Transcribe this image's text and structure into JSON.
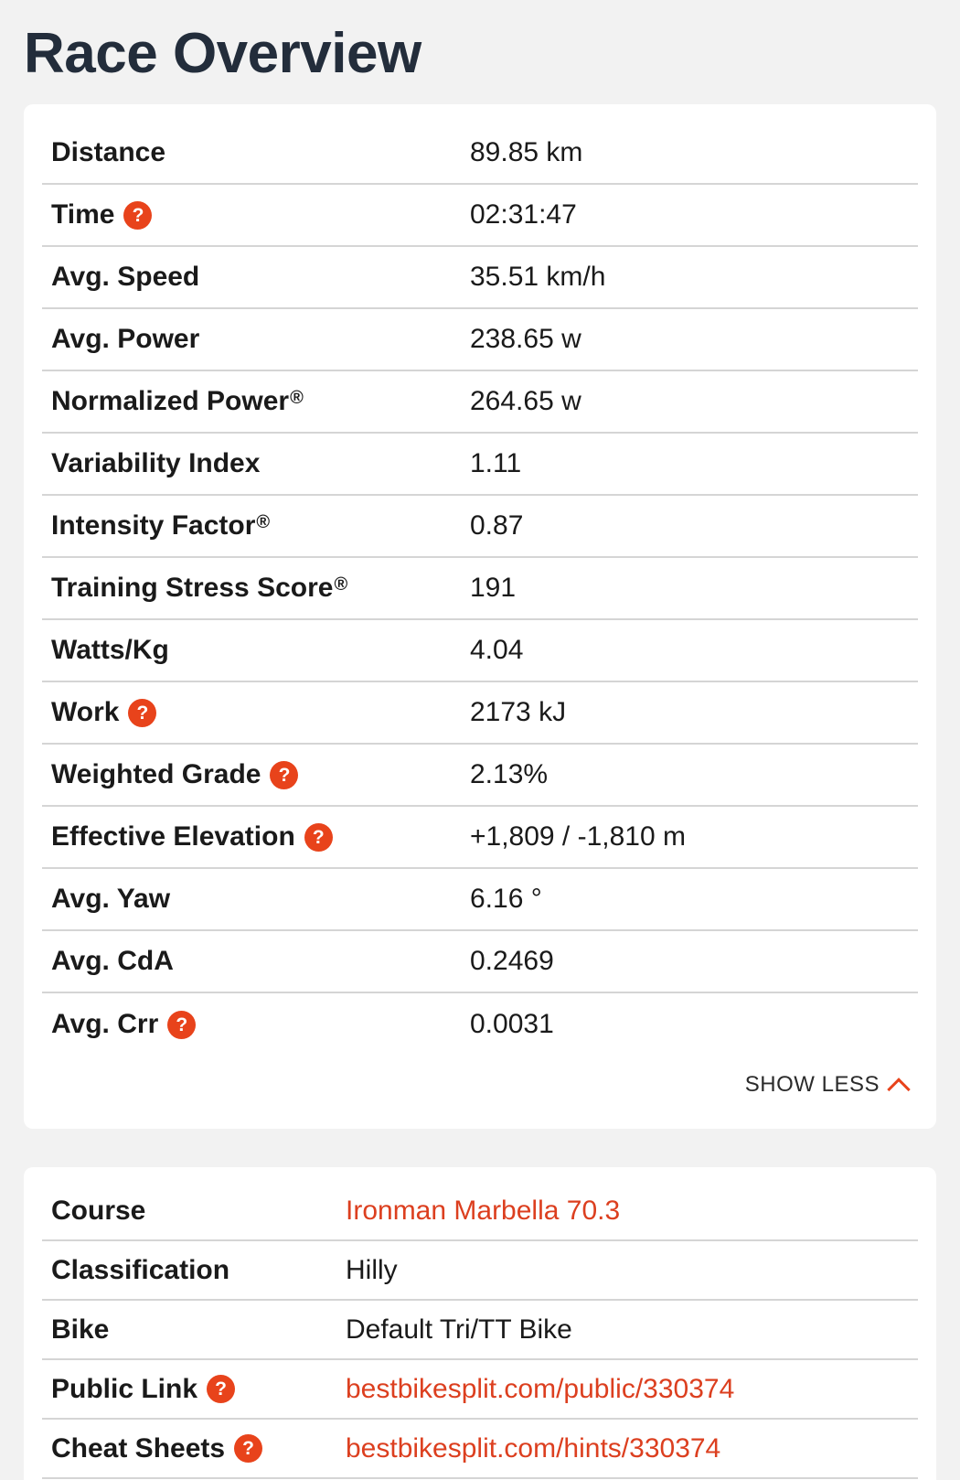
{
  "page": {
    "title": "Race Overview"
  },
  "stats": [
    {
      "label": "Distance",
      "value": "89.85 km",
      "help": false,
      "reg": false
    },
    {
      "label": "Time",
      "value": "02:31:47",
      "help": true,
      "reg": false
    },
    {
      "label": "Avg. Speed",
      "value": "35.51 km/h",
      "help": false,
      "reg": false
    },
    {
      "label": "Avg. Power",
      "value": "238.65 w",
      "help": false,
      "reg": false
    },
    {
      "label": "Normalized Power",
      "value": "264.65 w",
      "help": false,
      "reg": true
    },
    {
      "label": "Variability Index",
      "value": "1.11",
      "help": false,
      "reg": false
    },
    {
      "label": "Intensity Factor",
      "value": "0.87",
      "help": false,
      "reg": true
    },
    {
      "label": "Training Stress Score",
      "value": "191",
      "help": false,
      "reg": true
    },
    {
      "label": "Watts/Kg",
      "value": "4.04",
      "help": false,
      "reg": false
    },
    {
      "label": "Work",
      "value": "2173 kJ",
      "help": true,
      "reg": false
    },
    {
      "label": "Weighted Grade",
      "value": "2.13%",
      "help": true,
      "reg": false
    },
    {
      "label": "Effective Elevation",
      "value": "+1,809 / -1,810 m",
      "help": true,
      "reg": false
    },
    {
      "label": "Avg. Yaw",
      "value": "6.16 °",
      "help": false,
      "reg": false
    },
    {
      "label": "Avg. CdA",
      "value": "0.2469",
      "help": false,
      "reg": false
    },
    {
      "label": "Avg. Crr",
      "value": "0.0031",
      "help": true,
      "reg": false
    }
  ],
  "reg_symbol": "®",
  "help_symbol": "?",
  "toggle": {
    "label": "SHOW LESS",
    "icon": "chevron-up-icon"
  },
  "course": [
    {
      "label": "Course",
      "value": "Ironman Marbella 70.3",
      "help": false,
      "link": true
    },
    {
      "label": "Classification",
      "value": "Hilly",
      "help": false,
      "link": false
    },
    {
      "label": "Bike",
      "value": "Default Tri/TT Bike",
      "help": false,
      "link": false
    },
    {
      "label": "Public Link",
      "value": "bestbikesplit.com/public/330374",
      "help": true,
      "link": true
    },
    {
      "label": "Cheat Sheets",
      "value": "bestbikesplit.com/hints/330374",
      "help": true,
      "link": true
    }
  ],
  "colors": {
    "accent": "#e8431b",
    "link": "#dc3f1f",
    "title": "#232d3b"
  }
}
